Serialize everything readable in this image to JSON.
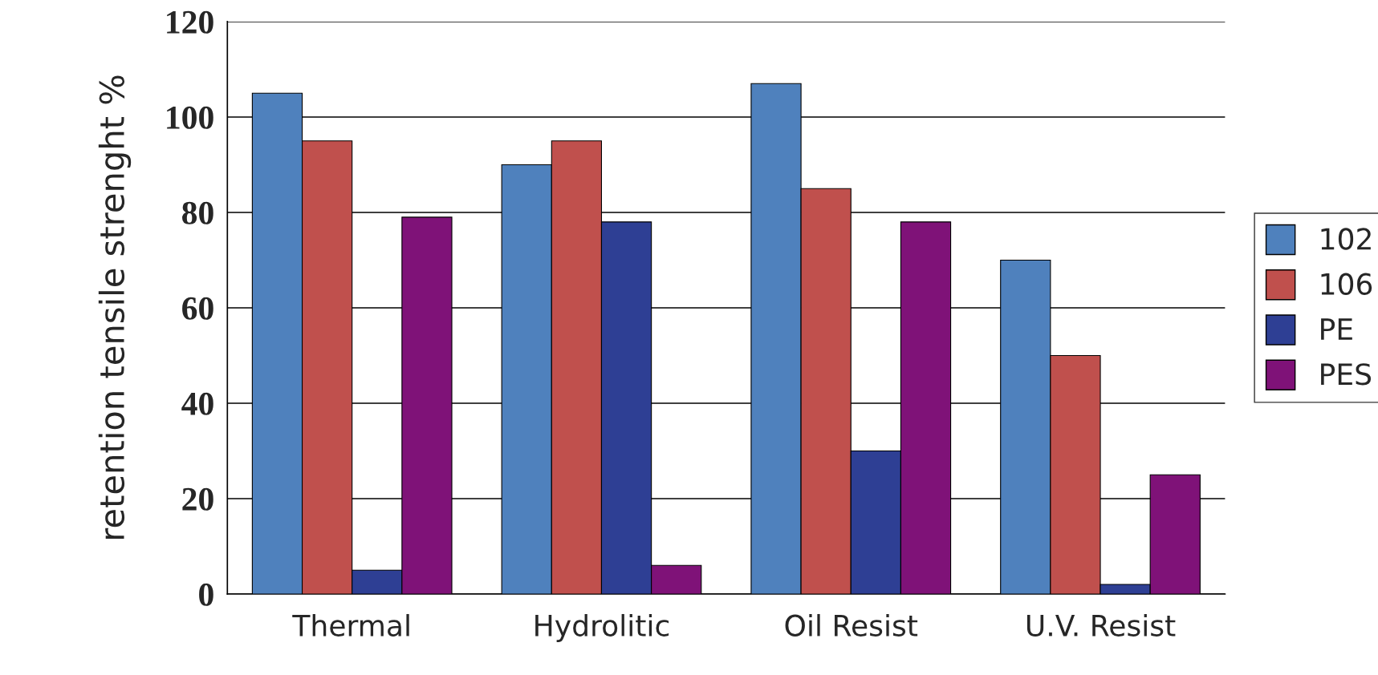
{
  "chart_data": {
    "type": "bar",
    "ylabel": "retention tensile strenght %",
    "categories": [
      "Thermal",
      "Hydrolitic",
      "Oil Resist",
      "U.V. Resist"
    ],
    "series": [
      {
        "name": "102",
        "color": "#4f81bd",
        "values": [
          105,
          90,
          107,
          70
        ]
      },
      {
        "name": "106",
        "color": "#c0504d",
        "values": [
          95,
          95,
          85,
          50
        ]
      },
      {
        "name": "PE",
        "color": "#2e3f94",
        "values": [
          5,
          78,
          30,
          2
        ]
      },
      {
        "name": "PES",
        "color": "#7f1278",
        "values": [
          79,
          6,
          78,
          25
        ]
      }
    ],
    "ylim": [
      0,
      120
    ],
    "yticks": [
      0,
      20,
      40,
      60,
      80,
      100,
      120
    ],
    "grid": "y",
    "legend": "right"
  }
}
